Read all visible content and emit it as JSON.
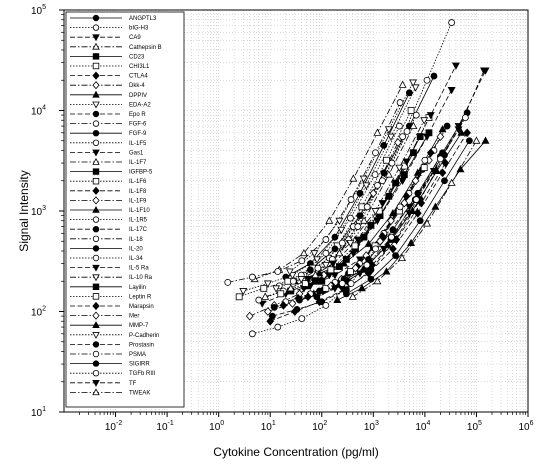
{
  "chart_data": {
    "type": "scatter",
    "xlabel": "Cytokine Concentration (pg/ml)",
    "ylabel": "Signal Intensity",
    "x_scale": "log",
    "y_scale": "log",
    "xlim": [
      0.001,
      1000000
    ],
    "ylim": [
      10,
      100000
    ],
    "x_ticks": [
      {
        "base": "10",
        "exp": "-2",
        "value": 0.01
      },
      {
        "base": "10",
        "exp": "-1",
        "value": 0.1
      },
      {
        "base": "10",
        "exp": "0",
        "value": 1
      },
      {
        "base": "10",
        "exp": "1",
        "value": 10
      },
      {
        "base": "10",
        "exp": "2",
        "value": 100
      },
      {
        "base": "10",
        "exp": "3",
        "value": 1000
      },
      {
        "base": "10",
        "exp": "4",
        "value": 10000
      },
      {
        "base": "10",
        "exp": "5",
        "value": 100000
      },
      {
        "base": "10",
        "exp": "6",
        "value": 1000000
      }
    ],
    "y_ticks": [
      {
        "base": "10",
        "exp": "1",
        "value": 10
      },
      {
        "base": "10",
        "exp": "2",
        "value": 100
      },
      {
        "base": "10",
        "exp": "3",
        "value": 1000
      },
      {
        "base": "10",
        "exp": "4",
        "value": 10000
      },
      {
        "base": "10",
        "exp": "5",
        "value": 100000
      }
    ],
    "grid": "minor dotted",
    "legend_position": "left",
    "series": [
      {
        "name": "ANGPTL3",
        "marker": "circle",
        "fill": "black",
        "line": "solid",
        "x": [
          20,
          60,
          180,
          550,
          1600,
          5000
        ],
        "y": [
          220,
          300,
          550,
          1500,
          4500,
          15000
        ]
      },
      {
        "name": "bIG-H3",
        "marker": "circle",
        "fill": "white",
        "line": "dotted",
        "x": [
          15,
          45,
          140,
          410,
          1200,
          3700,
          11000,
          33000
        ],
        "y": [
          180,
          230,
          340,
          700,
          1800,
          5500,
          20000,
          75000
        ]
      },
      {
        "name": "CA9",
        "marker": "triangle-down",
        "fill": "black",
        "line": "dashed",
        "x": [
          7,
          20,
          60,
          180,
          550,
          1600,
          5000,
          15000,
          45000,
          140000
        ],
        "y": [
          120,
          150,
          180,
          230,
          330,
          550,
          1100,
          2500,
          6500,
          25000
        ]
      },
      {
        "name": "Cathepsin B",
        "marker": "triangle",
        "fill": "white",
        "line": "dashdot",
        "x": [
          5,
          15,
          45,
          140,
          410,
          1200,
          3700
        ],
        "y": [
          210,
          260,
          380,
          800,
          2100,
          6000,
          18000
        ]
      },
      {
        "name": "CD23",
        "marker": "square",
        "fill": "black",
        "line": "solid",
        "x": [
          25,
          75,
          220,
          660,
          2000,
          6000
        ],
        "y": [
          160,
          200,
          280,
          550,
          1400,
          3800
        ]
      },
      {
        "name": "CHI3L1",
        "marker": "square",
        "fill": "white",
        "line": "dotted",
        "x": [
          2.5,
          7.5,
          22,
          66,
          200,
          600,
          1800,
          5400
        ],
        "y": [
          140,
          170,
          200,
          270,
          450,
          1100,
          3200,
          10000
        ]
      },
      {
        "name": "CTLA4",
        "marker": "diamond",
        "fill": "black",
        "line": "dashed",
        "x": [
          10,
          30,
          90,
          270,
          810,
          2400,
          7300,
          22000,
          66000
        ],
        "y": [
          80,
          100,
          125,
          165,
          240,
          420,
          950,
          2400,
          6000
        ]
      },
      {
        "name": "Dkk-4",
        "marker": "diamond",
        "fill": "white",
        "line": "dashdot",
        "x": [
          4,
          12,
          37,
          110,
          330,
          1000,
          3000
        ],
        "y": [
          90,
          115,
          150,
          230,
          520,
          1500,
          4800
        ]
      },
      {
        "name": "DPPIV",
        "marker": "triangle",
        "fill": "black",
        "line": "solid",
        "x": [
          30,
          90,
          270,
          810,
          2400,
          7300,
          22000
        ],
        "y": [
          200,
          240,
          300,
          470,
          950,
          2400,
          6500
        ]
      },
      {
        "name": "EDA-A2",
        "marker": "triangle-down",
        "fill": "white",
        "line": "dotted",
        "x": [
          3,
          9,
          27,
          81,
          240,
          730,
          2200,
          6600
        ],
        "y": [
          160,
          190,
          230,
          330,
          650,
          1800,
          5500,
          17000
        ]
      },
      {
        "name": "Epo R",
        "marker": "circle",
        "fill": "black",
        "line": "dashed",
        "x": [
          12,
          37,
          110,
          330,
          1000,
          3000,
          9000,
          27000
        ],
        "y": [
          110,
          130,
          165,
          240,
          430,
          1000,
          2600,
          7000
        ]
      },
      {
        "name": "FGF-6",
        "marker": "circle",
        "fill": "white",
        "line": "dashdot",
        "x": [
          1.5,
          4.5,
          14,
          41,
          120,
          370,
          1100,
          3300
        ],
        "y": [
          195,
          220,
          250,
          320,
          520,
          1300,
          3800,
          12000
        ]
      },
      {
        "name": "FGF-9",
        "marker": "circle",
        "fill": "black",
        "line": "solid",
        "x": [
          60,
          180,
          550,
          1600,
          5000,
          15000
        ],
        "y": [
          260,
          420,
          900,
          2400,
          7000,
          22000
        ]
      },
      {
        "name": "IL-1F5",
        "marker": "circle",
        "fill": "white",
        "line": "dotted",
        "x": [
          6,
          18,
          55,
          160,
          500,
          1500,
          4500
        ],
        "y": [
          130,
          160,
          210,
          330,
          700,
          2000,
          6200
        ]
      },
      {
        "name": "Gas1",
        "marker": "triangle-down",
        "fill": "black",
        "line": "dashed",
        "x": [
          45,
          140,
          410,
          1200,
          3700,
          11000,
          33000
        ],
        "y": [
          170,
          230,
          380,
          800,
          2000,
          5500,
          16000
        ]
      },
      {
        "name": "IL-1F7",
        "marker": "triangle",
        "fill": "white",
        "line": "dashdot",
        "x": [
          8,
          25,
          75,
          220,
          660,
          2000,
          6000
        ],
        "y": [
          140,
          170,
          230,
          380,
          800,
          2300,
          7000
        ]
      },
      {
        "name": "IGFBP-5",
        "marker": "square",
        "fill": "black",
        "line": "solid",
        "x": [
          50,
          150,
          450,
          1350,
          4000,
          12000
        ],
        "y": [
          180,
          250,
          420,
          900,
          2300,
          6000
        ]
      },
      {
        "name": "IL-1F6",
        "marker": "square",
        "fill": "white",
        "line": "dotted",
        "x": [
          16,
          48,
          150,
          440,
          1300,
          4000,
          12000
        ],
        "y": [
          150,
          190,
          260,
          450,
          1000,
          2800,
          8500
        ]
      },
      {
        "name": "IL-1F8",
        "marker": "diamond",
        "fill": "black",
        "line": "dashed",
        "x": [
          35,
          105,
          315,
          950,
          2800,
          8500,
          25000
        ],
        "y": [
          135,
          160,
          200,
          290,
          520,
          1200,
          3000
        ]
      },
      {
        "name": "IL-1F9",
        "marker": "diamond",
        "fill": "white",
        "line": "dashdot",
        "x": [
          9,
          27,
          81,
          240,
          730,
          2200,
          6600,
          20000
        ],
        "y": [
          100,
          120,
          150,
          210,
          360,
          800,
          2000,
          5500
        ]
      },
      {
        "name": "IL-1F10",
        "marker": "triangle",
        "fill": "black",
        "line": "solid",
        "x": [
          70,
          210,
          630,
          1900,
          5700,
          17000,
          51000
        ],
        "y": [
          150,
          190,
          260,
          460,
          1000,
          2500,
          6000
        ]
      },
      {
        "name": "IL-1R5",
        "marker": "circle",
        "fill": "white",
        "line": "dotted",
        "x": [
          40,
          120,
          360,
          1080,
          3200
        ],
        "y": [
          230,
          380,
          850,
          2300,
          7000
        ]
      },
      {
        "name": "IL-17C",
        "marker": "circle",
        "fill": "black",
        "line": "dashed",
        "x": [
          80,
          240,
          720,
          2200,
          6500,
          20000
        ],
        "y": [
          140,
          180,
          270,
          520,
          1300,
          3500
        ]
      },
      {
        "name": "IL-18",
        "marker": "circle",
        "fill": "white",
        "line": "dashdot",
        "x": [
          20,
          60,
          180,
          540,
          1600,
          4900,
          15000
        ],
        "y": [
          125,
          150,
          195,
          300,
          600,
          1500,
          4000
        ]
      },
      {
        "name": "IL-20",
        "marker": "circle",
        "fill": "black",
        "line": "solid",
        "x": [
          90,
          270,
          810,
          2400,
          7300,
          22000,
          66000
        ],
        "y": [
          160,
          210,
          330,
          650,
          1500,
          3800,
          9500
        ]
      },
      {
        "name": "IL-34",
        "marker": "circle",
        "fill": "white",
        "line": "dotted",
        "x": [
          28,
          84,
          250,
          760,
          2300,
          6800
        ],
        "y": [
          200,
          270,
          480,
          1100,
          3000,
          9000
        ]
      },
      {
        "name": "IL-5 Ra",
        "marker": "triangle-down",
        "fill": "black",
        "line": "dashed",
        "x": [
          55,
          165,
          500,
          1500,
          4400,
          13000,
          40000
        ],
        "y": [
          210,
          300,
          520,
          1200,
          3100,
          9000,
          28000
        ]
      },
      {
        "name": "IL-10 Ra",
        "marker": "triangle-down",
        "fill": "white",
        "line": "dashdot",
        "x": [
          13,
          40,
          120,
          360,
          1100,
          3200,
          9700
        ],
        "y": [
          170,
          210,
          290,
          480,
          1000,
          2700,
          8000
        ]
      },
      {
        "name": "Layilin",
        "marker": "square",
        "fill": "black",
        "line": "solid",
        "x": [
          100,
          300,
          900,
          2700,
          8100
        ],
        "y": [
          200,
          330,
          720,
          1900,
          5500
        ]
      },
      {
        "name": "Leptin R",
        "marker": "square",
        "fill": "white",
        "line": "dotted",
        "x": [
          120,
          360,
          1080,
          3200,
          9700
        ],
        "y": [
          170,
          250,
          450,
          1000,
          2700
        ]
      },
      {
        "name": "Marapsin",
        "marker": "diamond",
        "fill": "black",
        "line": "dashed",
        "x": [
          18,
          54,
          160,
          490,
          1500,
          4400,
          13000
        ],
        "y": [
          115,
          140,
          180,
          280,
          560,
          1400,
          3800
        ]
      },
      {
        "name": "Mer",
        "marker": "diamond",
        "fill": "white",
        "line": "dashdot",
        "x": [
          150,
          450,
          1350,
          4000,
          12000
        ],
        "y": [
          180,
          270,
          500,
          1200,
          3200
        ]
      },
      {
        "name": "MMP-7",
        "marker": "triangle",
        "fill": "black",
        "line": "solid",
        "x": [
          200,
          600,
          1800,
          5400,
          16000,
          49000,
          150000
        ],
        "y": [
          130,
          170,
          250,
          480,
          1100,
          2600,
          5000
        ]
      },
      {
        "name": "P-Cadherin",
        "marker": "triangle-down",
        "fill": "white",
        "line": "dotted",
        "x": [
          24,
          72,
          220,
          650,
          2000,
          5900
        ],
        "y": [
          250,
          380,
          800,
          2100,
          6500,
          19000
        ]
      },
      {
        "name": "Prostasin",
        "marker": "circle",
        "fill": "black",
        "line": "dashed",
        "x": [
          11,
          33,
          100,
          300,
          900,
          2700,
          8100,
          24000
        ],
        "y": [
          90,
          105,
          125,
          165,
          260,
          520,
          1300,
          3600
        ]
      },
      {
        "name": "PSMA",
        "marker": "circle",
        "fill": "white",
        "line": "dashdot",
        "x": [
          250,
          750,
          2250,
          6800,
          20000,
          61000
        ],
        "y": [
          190,
          290,
          550,
          1300,
          3300,
          8500
        ]
      },
      {
        "name": "SIGIRR",
        "marker": "circle",
        "fill": "black",
        "line": "solid",
        "x": [
          300,
          900,
          2700,
          8100,
          24000,
          73000
        ],
        "y": [
          150,
          210,
          360,
          800,
          2000,
          5000
        ]
      },
      {
        "name": "TGFb RIII",
        "marker": "circle",
        "fill": "white",
        "line": "dotted",
        "x": [
          4.5,
          14,
          41,
          120,
          370,
          1100,
          3300,
          10000
        ],
        "y": [
          60,
          70,
          85,
          115,
          190,
          420,
          1100,
          3200
        ]
      },
      {
        "name": "TF",
        "marker": "triangle-down",
        "fill": "black",
        "line": "dashed",
        "x": [
          180,
          550,
          1600,
          5000,
          15000,
          45000,
          150000
        ],
        "y": [
          170,
          240,
          420,
          950,
          2500,
          7000,
          25000
        ]
      },
      {
        "name": "TWEAK",
        "marker": "triangle",
        "fill": "white",
        "line": "dashdot",
        "x": [
          400,
          1200,
          3600,
          11000,
          33000,
          100000
        ],
        "y": [
          140,
          200,
          340,
          750,
          1900,
          5000
        ]
      }
    ]
  }
}
